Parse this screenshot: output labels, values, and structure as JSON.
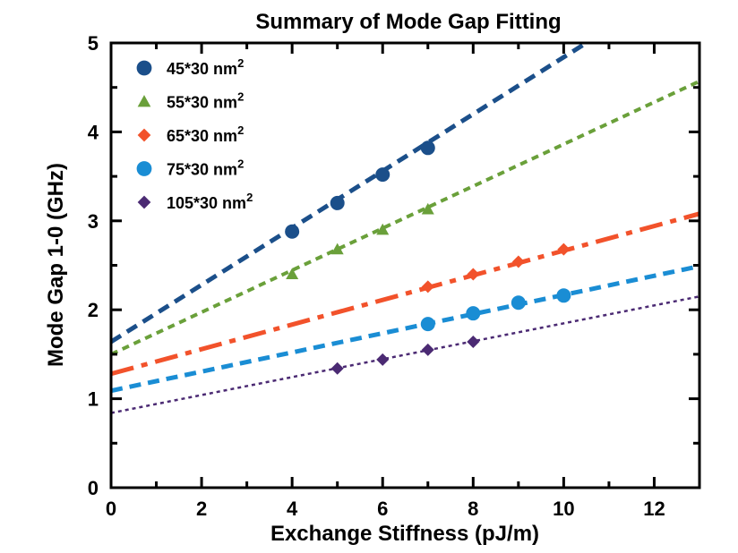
{
  "chart_data": {
    "type": "scatter",
    "title": "Summary of Mode Gap Fitting",
    "xlabel": "Exchange Stiffness (pJ/m)",
    "ylabel": "Mode Gap 1-0 (GHz)",
    "xlim": [
      0,
      13
    ],
    "ylim": [
      0,
      5
    ],
    "x_major_ticks": [
      0,
      2,
      4,
      6,
      8,
      10,
      12
    ],
    "x_minor_ticks": [
      1,
      3,
      5,
      7,
      9,
      11,
      13
    ],
    "y_major_ticks": [
      0,
      1,
      2,
      3,
      4,
      5
    ],
    "y_minor_ticks": [
      0.5,
      1.5,
      2.5,
      3.5,
      4.5
    ],
    "grid": false,
    "legend_position": "top-left",
    "series": [
      {
        "name": "45*30 nm",
        "name_sup": "2",
        "marker": "circle",
        "color": "#1B4F8A",
        "line_style": "dashed",
        "x": [
          4,
          5,
          6,
          7
        ],
        "y": [
          2.88,
          3.2,
          3.52,
          3.82
        ],
        "fit": {
          "x0": 0,
          "y0": 1.64,
          "x1": 10.5,
          "y1": 5.0
        }
      },
      {
        "name": "55*30 nm",
        "name_sup": "2",
        "marker": "triangle",
        "color": "#6AA03A",
        "line_style": "dotted",
        "x": [
          4,
          5,
          6,
          7
        ],
        "y": [
          2.4,
          2.68,
          2.9,
          3.13
        ],
        "fit": {
          "x0": 0,
          "y0": 1.5,
          "x1": 13,
          "y1": 4.57
        }
      },
      {
        "name": "65*30 nm",
        "name_sup": "2",
        "marker": "diamond",
        "color": "#F2522B",
        "line_style": "dash-dot",
        "x": [
          7,
          8,
          9,
          10
        ],
        "y": [
          2.26,
          2.4,
          2.54,
          2.68
        ],
        "fit": {
          "x0": 0,
          "y0": 1.28,
          "x1": 13,
          "y1": 3.08
        }
      },
      {
        "name": "75*30 nm",
        "name_sup": "2",
        "marker": "circle",
        "color": "#1A8DD4",
        "line_style": "dashed",
        "x": [
          7,
          8,
          9,
          10
        ],
        "y": [
          1.84,
          1.96,
          2.08,
          2.16
        ],
        "fit": {
          "x0": 0,
          "y0": 1.09,
          "x1": 13,
          "y1": 2.49
        }
      },
      {
        "name": "105*30 nm",
        "name_sup": "2",
        "marker": "diamond",
        "color": "#4B2A73",
        "line_style": "fine-dotted",
        "x": [
          5,
          6,
          7,
          8
        ],
        "y": [
          1.34,
          1.44,
          1.55,
          1.64
        ],
        "fit": {
          "x0": 0,
          "y0": 0.84,
          "x1": 13,
          "y1": 2.15
        }
      }
    ]
  }
}
